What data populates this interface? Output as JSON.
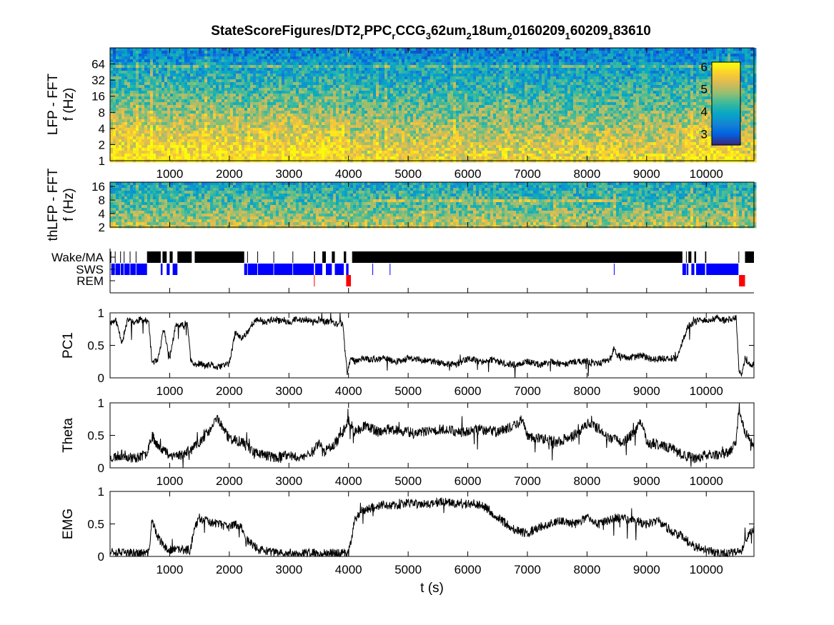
{
  "figure": {
    "title_main": "StateScoreFigures/DT2",
    "title_parts": [
      {
        "t": "StateScoreFigures/DT2",
        "sub": false
      },
      {
        "t": "r",
        "sub": true
      },
      {
        "t": "PPC",
        "sub": false
      },
      {
        "t": "r",
        "sub": true
      },
      {
        "t": "CCG",
        "sub": false
      },
      {
        "t": "3",
        "sub": true
      },
      {
        "t": "62um",
        "sub": false
      },
      {
        "t": "2",
        "sub": true
      },
      {
        "t": "18um",
        "sub": false
      },
      {
        "t": "2",
        "sub": true
      },
      {
        "t": "0160209",
        "sub": false
      },
      {
        "t": "1",
        "sub": true
      },
      {
        "t": "60209",
        "sub": false
      },
      {
        "t": "1",
        "sub": true
      },
      {
        "t": "83610",
        "sub": false
      }
    ]
  },
  "colors": {
    "trace": "#000000",
    "wake": "#000000",
    "sws": "#0000ff",
    "rem": "#ff0000",
    "parula": [
      "#352a87",
      "#0363e1",
      "#1485d4",
      "#06a7c6",
      "#38b99e",
      "#92bf73",
      "#d9ba56",
      "#fcce2e",
      "#f9fb0e"
    ]
  },
  "chart_data": [
    {
      "type": "heatmap",
      "name": "spectrogram-lfp",
      "ylabel_lines": [
        "LFP - FFT",
        "f (Hz)"
      ],
      "xlim": [
        0,
        10800
      ],
      "x_ticks": [
        1000,
        2000,
        3000,
        4000,
        5000,
        6000,
        7000,
        8000,
        9000,
        10000
      ],
      "y_scale": "log2",
      "ylim": [
        1,
        128
      ],
      "y_ticks": [
        1,
        2,
        4,
        8,
        16,
        32,
        64
      ],
      "colorbar": {
        "clim": [
          2.5,
          6.2
        ],
        "ticks": [
          3,
          4,
          5,
          6
        ]
      },
      "high_power_intervals": [
        [
          0,
          700
        ],
        [
          700,
          1350
        ],
        [
          1350,
          2200
        ],
        [
          2300,
          3900
        ],
        [
          9650,
          10550
        ]
      ],
      "line_freq_hz": 60
    },
    {
      "type": "heatmap",
      "name": "spectrogram-thlfp",
      "ylabel_lines": [
        "thLFP - FFT",
        "f (Hz)"
      ],
      "xlim": [
        0,
        10800
      ],
      "y_scale": "log2",
      "ylim": [
        2,
        20
      ],
      "y_ticks": [
        2,
        4,
        8,
        16
      ],
      "theta_band_hz": 7.5,
      "theta_band_intervals": [
        [
          4300,
          8500
        ]
      ]
    },
    {
      "type": "hypnogram",
      "name": "state-raster",
      "xlim": [
        0,
        10800
      ],
      "states": [
        "Wake/MA",
        "SWS",
        "REM"
      ],
      "wake": [
        [
          0,
          20
        ],
        [
          80,
          90
        ],
        [
          170,
          180
        ],
        [
          230,
          240
        ],
        [
          330,
          340
        ],
        [
          430,
          440
        ],
        [
          620,
          850
        ],
        [
          880,
          950
        ],
        [
          1000,
          1050
        ],
        [
          1130,
          1370
        ],
        [
          1420,
          2250
        ],
        [
          2300,
          2310
        ],
        [
          2470,
          2480
        ],
        [
          2740,
          2750
        ],
        [
          3060,
          3070
        ],
        [
          3420,
          3440
        ],
        [
          3560,
          3620
        ],
        [
          3720,
          3770
        ],
        [
          3920,
          3960
        ],
        [
          4060,
          9600
        ],
        [
          9660,
          9670
        ],
        [
          9700,
          9750
        ],
        [
          9800,
          9830
        ],
        [
          9980,
          10000
        ],
        [
          10540,
          10550
        ],
        [
          10650,
          10800
        ]
      ],
      "sws": [
        [
          20,
          80
        ],
        [
          90,
          170
        ],
        [
          180,
          230
        ],
        [
          240,
          330
        ],
        [
          340,
          430
        ],
        [
          440,
          620
        ],
        [
          850,
          880
        ],
        [
          950,
          1000
        ],
        [
          1050,
          1130
        ],
        [
          2250,
          2300
        ],
        [
          2310,
          2470
        ],
        [
          2480,
          2740
        ],
        [
          2750,
          3060
        ],
        [
          3070,
          3420
        ],
        [
          3440,
          3560
        ],
        [
          3620,
          3720
        ],
        [
          3770,
          3920
        ],
        [
          3960,
          4000
        ],
        [
          4400,
          4410
        ],
        [
          4690,
          4700
        ],
        [
          8450,
          8460
        ],
        [
          9600,
          9660
        ],
        [
          9670,
          9700
        ],
        [
          9750,
          9800
        ],
        [
          9830,
          9980
        ],
        [
          10000,
          10540
        ]
      ],
      "rem": [
        [
          3420,
          3430
        ],
        [
          3960,
          4040
        ],
        [
          10550,
          10650
        ]
      ]
    },
    {
      "type": "line",
      "name": "pc1",
      "ylabel": "PC1",
      "xlim": [
        0,
        10800
      ],
      "ylim": [
        0,
        1
      ],
      "y_ticks": [
        0,
        0.5,
        1
      ],
      "x_ticks": [
        1000,
        2000,
        3000,
        4000,
        5000,
        6000,
        7000,
        8000,
        9000,
        10000
      ],
      "noise": 0.05,
      "seed": 11,
      "x": [
        0,
        100,
        200,
        300,
        400,
        500,
        600,
        650,
        700,
        800,
        900,
        1000,
        1100,
        1200,
        1300,
        1350,
        1400,
        1500,
        1600,
        1700,
        1800,
        1900,
        2000,
        2050,
        2100,
        2200,
        2300,
        2400,
        2500,
        2600,
        2700,
        2800,
        2900,
        3000,
        3100,
        3200,
        3300,
        3400,
        3500,
        3600,
        3700,
        3800,
        3900,
        3980,
        4000,
        4050,
        4100,
        4200,
        4400,
        4600,
        4800,
        5000,
        5200,
        5400,
        5600,
        5800,
        6000,
        6200,
        6400,
        6600,
        6800,
        7000,
        7200,
        7400,
        7600,
        7800,
        8000,
        8200,
        8400,
        8450,
        8500,
        8700,
        8900,
        9100,
        9300,
        9500,
        9600,
        9700,
        9800,
        9900,
        10000,
        10100,
        10200,
        10300,
        10400,
        10500,
        10550,
        10600,
        10650,
        10700,
        10800
      ],
      "y": [
        0.85,
        0.88,
        0.55,
        0.9,
        0.85,
        0.9,
        0.88,
        0.85,
        0.25,
        0.25,
        0.75,
        0.3,
        0.8,
        0.8,
        0.85,
        0.28,
        0.2,
        0.22,
        0.18,
        0.2,
        0.15,
        0.2,
        0.22,
        0.45,
        0.7,
        0.6,
        0.7,
        0.85,
        0.9,
        0.85,
        0.9,
        0.87,
        0.9,
        0.85,
        0.9,
        0.88,
        0.9,
        0.85,
        0.9,
        0.85,
        0.88,
        0.82,
        0.85,
        0.05,
        0.2,
        0.3,
        0.25,
        0.3,
        0.28,
        0.3,
        0.25,
        0.3,
        0.28,
        0.25,
        0.22,
        0.2,
        0.3,
        0.25,
        0.28,
        0.22,
        0.2,
        0.25,
        0.2,
        0.25,
        0.2,
        0.25,
        0.25,
        0.22,
        0.3,
        0.45,
        0.35,
        0.3,
        0.35,
        0.28,
        0.3,
        0.3,
        0.55,
        0.8,
        0.85,
        0.9,
        0.88,
        0.9,
        0.92,
        0.88,
        0.9,
        0.92,
        0.1,
        0.05,
        0.3,
        0.2,
        0.2
      ]
    },
    {
      "type": "line",
      "name": "theta",
      "ylabel": "Theta",
      "xlim": [
        0,
        10800
      ],
      "ylim": [
        0,
        1
      ],
      "y_ticks": [
        0,
        0.5,
        1
      ],
      "x_ticks": [
        1000,
        2000,
        3000,
        4000,
        5000,
        6000,
        7000,
        8000,
        9000,
        10000
      ],
      "noise": 0.08,
      "seed": 23,
      "x": [
        0,
        200,
        400,
        600,
        700,
        800,
        1000,
        1200,
        1400,
        1600,
        1700,
        1800,
        1900,
        2000,
        2200,
        2300,
        2400,
        2600,
        2800,
        3000,
        3200,
        3400,
        3500,
        3600,
        3800,
        3900,
        4000,
        4100,
        4300,
        4500,
        4700,
        5000,
        5300,
        5600,
        5900,
        6200,
        6500,
        6800,
        6900,
        7000,
        7200,
        7500,
        7800,
        8000,
        8200,
        8400,
        8600,
        8800,
        8900,
        9000,
        9200,
        9400,
        9600,
        9800,
        10000,
        10200,
        10400,
        10500,
        10550,
        10600,
        10650,
        10700,
        10800
      ],
      "y": [
        0.15,
        0.2,
        0.15,
        0.2,
        0.5,
        0.35,
        0.2,
        0.2,
        0.3,
        0.5,
        0.6,
        0.78,
        0.6,
        0.45,
        0.4,
        0.35,
        0.25,
        0.2,
        0.15,
        0.2,
        0.15,
        0.25,
        0.4,
        0.25,
        0.4,
        0.55,
        0.75,
        0.55,
        0.65,
        0.55,
        0.6,
        0.55,
        0.55,
        0.6,
        0.55,
        0.6,
        0.55,
        0.65,
        0.75,
        0.5,
        0.45,
        0.4,
        0.5,
        0.7,
        0.6,
        0.45,
        0.4,
        0.55,
        0.75,
        0.4,
        0.35,
        0.3,
        0.2,
        0.15,
        0.2,
        0.2,
        0.25,
        0.4,
        0.95,
        0.7,
        0.55,
        0.5,
        0.3
      ]
    },
    {
      "type": "line",
      "name": "emg",
      "ylabel": "EMG",
      "xlabel": "t (s)",
      "xlim": [
        0,
        10800
      ],
      "ylim": [
        0,
        1
      ],
      "y_ticks": [
        0,
        0.5,
        1
      ],
      "x_ticks": [
        1000,
        2000,
        3000,
        4000,
        5000,
        6000,
        7000,
        8000,
        9000,
        10000
      ],
      "noise": 0.07,
      "seed": 37,
      "x": [
        0,
        200,
        400,
        600,
        650,
        700,
        800,
        900,
        1000,
        1200,
        1350,
        1400,
        1500,
        1600,
        1800,
        2000,
        2100,
        2200,
        2300,
        2500,
        2800,
        3000,
        3300,
        3600,
        3900,
        4000,
        4100,
        4200,
        4400,
        4600,
        4800,
        5000,
        5300,
        5600,
        5900,
        6100,
        6300,
        6500,
        6800,
        7000,
        7200,
        7500,
        7800,
        8000,
        8200,
        8500,
        8800,
        9000,
        9200,
        9400,
        9600,
        9800,
        10000,
        10200,
        10400,
        10600,
        10700,
        10800
      ],
      "y": [
        0.1,
        0.05,
        0.05,
        0.05,
        0.05,
        0.55,
        0.3,
        0.15,
        0.1,
        0.1,
        0.1,
        0.4,
        0.6,
        0.55,
        0.5,
        0.45,
        0.5,
        0.45,
        0.25,
        0.1,
        0.05,
        0.05,
        0.05,
        0.05,
        0.05,
        0.05,
        0.55,
        0.7,
        0.75,
        0.8,
        0.78,
        0.82,
        0.8,
        0.85,
        0.8,
        0.82,
        0.75,
        0.6,
        0.4,
        0.35,
        0.45,
        0.55,
        0.5,
        0.6,
        0.5,
        0.6,
        0.55,
        0.5,
        0.55,
        0.4,
        0.3,
        0.15,
        0.1,
        0.05,
        0.05,
        0.1,
        0.3,
        0.45
      ]
    }
  ]
}
